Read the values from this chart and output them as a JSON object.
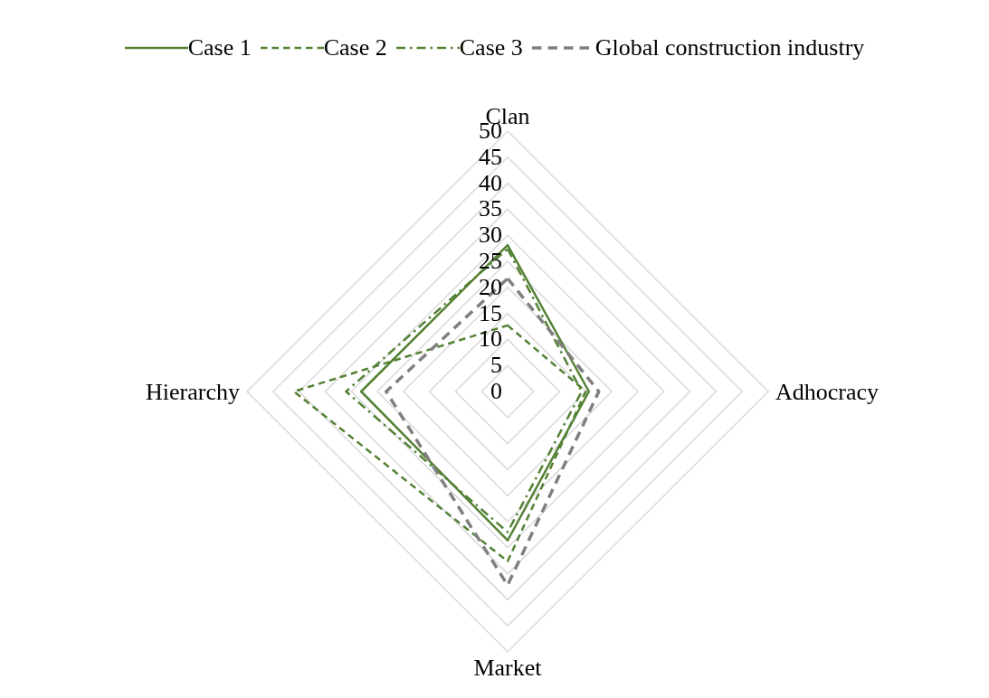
{
  "chart_data": {
    "type": "radar",
    "categories": [
      "Clan",
      "Adhocracy",
      "Market",
      "Hierarchy"
    ],
    "series": [
      {
        "name": "Case 1",
        "color": "#548235",
        "line_style": "solid",
        "values": [
          28.1,
          15.6,
          28.6,
          28.1
        ]
      },
      {
        "name": "Case 2",
        "color": "#548235",
        "line_style": "dashed",
        "values": [
          12.7,
          15,
          32.6,
          41
        ]
      },
      {
        "name": "Case 3",
        "color": "#548235",
        "line_style": "dashdot",
        "values": [
          27.4,
          14.2,
          27,
          31
        ]
      },
      {
        "name": "Global construction industry",
        "color": "#808080",
        "line_style": "dashed",
        "values": [
          21.7,
          17.5,
          37.2,
          23.3
        ]
      }
    ],
    "ylim": [
      0,
      50
    ],
    "yticks": [
      0,
      5,
      10,
      15,
      20,
      25,
      30,
      35,
      40,
      45,
      50
    ],
    "grid": true,
    "legend": "top",
    "marker": "none"
  }
}
